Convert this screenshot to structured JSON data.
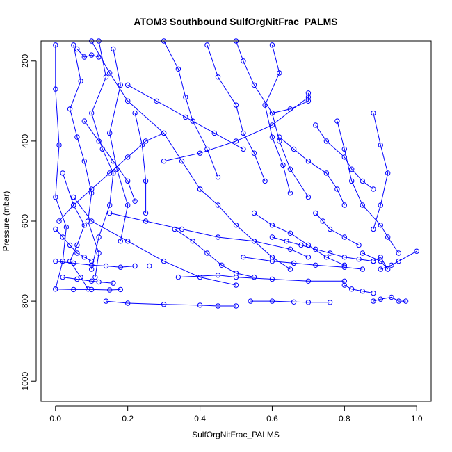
{
  "chart_data": {
    "type": "scatter",
    "title": "ATOM3 Southbound SulfOrgNitFrac_PALMS",
    "xlabel": "SulfOrgNitFrac_PALMS",
    "ylabel": "Pressure (mbar)",
    "xlim": [
      -0.04,
      1.04
    ],
    "ylim": [
      1050,
      150
    ],
    "y_reversed": true,
    "grid": false,
    "x_ticks": [
      0.0,
      0.2,
      0.4,
      0.6,
      0.8,
      1.0
    ],
    "x_tick_labels": [
      "0.0",
      "0.2",
      "0.4",
      "0.6",
      "0.8",
      "1.0"
    ],
    "y_ticks": [
      200,
      400,
      600,
      800,
      1000
    ],
    "y_tick_labels": [
      "200",
      "400",
      "600",
      "800",
      "1000"
    ],
    "series_color": "#0000ff",
    "marker": "open-circle",
    "connect_points": true,
    "series": [
      {
        "x": [
          0.0,
          0.0,
          0.01,
          0.0,
          0.03,
          0.02,
          0.0
        ],
        "y": [
          160,
          270,
          410,
          540,
          615,
          700,
          770
        ]
      },
      {
        "x": [
          0.05,
          0.07,
          0.04,
          0.06,
          0.08,
          0.1,
          0.09,
          0.12,
          0.11
        ],
        "y": [
          160,
          250,
          320,
          390,
          450,
          530,
          600,
          680,
          740
        ]
      },
      {
        "x": [
          0.12,
          0.14,
          0.1,
          0.13,
          0.16,
          0.15,
          0.12,
          0.1
        ],
        "y": [
          150,
          240,
          330,
          420,
          480,
          560,
          640,
          720
        ]
      },
      {
        "x": [
          0.16,
          0.18,
          0.15,
          0.17,
          0.2,
          0.18
        ],
        "y": [
          170,
          260,
          380,
          470,
          560,
          650
        ]
      },
      {
        "x": [
          0.02,
          0.05,
          0.08,
          0.06,
          0.04,
          0.07,
          0.09
        ],
        "y": [
          480,
          560,
          610,
          660,
          700,
          740,
          770
        ]
      },
      {
        "x": [
          0.1,
          0.15,
          0.2,
          0.3,
          0.35,
          0.4
        ],
        "y": [
          150,
          230,
          300,
          380,
          450,
          520
        ]
      },
      {
        "x": [
          0.22,
          0.24,
          0.25,
          0.25
        ],
        "y": [
          330,
          410,
          500,
          580
        ]
      },
      {
        "x": [
          0.3,
          0.34,
          0.36,
          0.38,
          0.42,
          0.45
        ],
        "y": [
          150,
          220,
          290,
          350,
          420,
          490
        ]
      },
      {
        "x": [
          0.42,
          0.45,
          0.5,
          0.52,
          0.55,
          0.58
        ],
        "y": [
          160,
          240,
          310,
          380,
          430,
          500
        ]
      },
      {
        "x": [
          0.5,
          0.52,
          0.55,
          0.6,
          0.62,
          0.65,
          0.7
        ],
        "y": [
          150,
          200,
          260,
          330,
          400,
          470,
          540
        ]
      },
      {
        "x": [
          0.6,
          0.62,
          0.58,
          0.6,
          0.63,
          0.65
        ],
        "y": [
          160,
          230,
          310,
          390,
          460,
          530
        ]
      },
      {
        "x": [
          0.6,
          0.65,
          0.7,
          0.7
        ],
        "y": [
          330,
          320,
          300,
          280
        ]
      },
      {
        "x": [
          0.62,
          0.66,
          0.7,
          0.75,
          0.78,
          0.8
        ],
        "y": [
          390,
          420,
          450,
          480,
          520,
          560
        ]
      },
      {
        "x": [
          0.72,
          0.75,
          0.8,
          0.82,
          0.85,
          0.88
        ],
        "y": [
          360,
          400,
          440,
          470,
          500,
          520
        ]
      },
      {
        "x": [
          0.78,
          0.8,
          0.82,
          0.85,
          0.9,
          0.92,
          0.95
        ],
        "y": [
          350,
          420,
          500,
          560,
          610,
          640,
          680
        ]
      },
      {
        "x": [
          0.88,
          0.9,
          0.92,
          0.9,
          0.88
        ],
        "y": [
          330,
          410,
          480,
          560,
          620
        ]
      },
      {
        "x": [
          0.72,
          0.74,
          0.76,
          0.8,
          0.84
        ],
        "y": [
          580,
          600,
          620,
          640,
          660
        ]
      },
      {
        "x": [
          0.55,
          0.6,
          0.65,
          0.7,
          0.75,
          0.8
        ],
        "y": [
          580,
          610,
          630,
          660,
          690,
          710
        ]
      },
      {
        "x": [
          0.4,
          0.45,
          0.5,
          0.55,
          0.6,
          0.65
        ],
        "y": [
          520,
          560,
          610,
          650,
          690,
          720
        ]
      },
      {
        "x": [
          0.33,
          0.38,
          0.42,
          0.46,
          0.5,
          0.55
        ],
        "y": [
          620,
          650,
          680,
          710,
          730,
          740
        ]
      },
      {
        "x": [
          0.34,
          0.45,
          0.5,
          0.6,
          0.7,
          0.8
        ],
        "y": [
          740,
          735,
          740,
          745,
          750,
          750
        ]
      },
      {
        "x": [
          0.52,
          0.6,
          0.66,
          0.72,
          0.8,
          0.85
        ],
        "y": [
          690,
          700,
          705,
          710,
          715,
          720
        ]
      },
      {
        "x": [
          0.85,
          0.9,
          0.92,
          0.9,
          0.88
        ],
        "y": [
          680,
          700,
          720,
          690,
          700
        ]
      },
      {
        "x": [
          0.9,
          0.93,
          0.95,
          1.0
        ],
        "y": [
          720,
          710,
          700,
          675
        ]
      },
      {
        "x": [
          0.8,
          0.82,
          0.85,
          0.88
        ],
        "y": [
          760,
          770,
          775,
          780
        ]
      },
      {
        "x": [
          0.88,
          0.9,
          0.93,
          0.95,
          0.97
        ],
        "y": [
          800,
          795,
          790,
          800,
          800
        ]
      },
      {
        "x": [
          0.54,
          0.6,
          0.66,
          0.7,
          0.76
        ],
        "y": [
          800,
          800,
          802,
          803,
          803
        ]
      },
      {
        "x": [
          0.14,
          0.2,
          0.3,
          0.4,
          0.45,
          0.5
        ],
        "y": [
          800,
          805,
          808,
          810,
          812,
          812
        ]
      },
      {
        "x": [
          0.0,
          0.05,
          0.1,
          0.15,
          0.18
        ],
        "y": [
          770,
          771,
          771,
          772,
          771
        ]
      },
      {
        "x": [
          0.0,
          0.05,
          0.1,
          0.14,
          0.18,
          0.22,
          0.26
        ],
        "y": [
          700,
          705,
          710,
          712,
          715,
          712,
          712
        ]
      },
      {
        "x": [
          0.02,
          0.06,
          0.1,
          0.12,
          0.16
        ],
        "y": [
          740,
          745,
          750,
          752,
          755
        ]
      },
      {
        "x": [
          0.01,
          0.05,
          0.1,
          0.15,
          0.2,
          0.25,
          0.3
        ],
        "y": [
          600,
          560,
          520,
          480,
          440,
          400,
          380
        ]
      },
      {
        "x": [
          0.05,
          0.1,
          0.2,
          0.3,
          0.4,
          0.5
        ],
        "y": [
          540,
          600,
          650,
          700,
          740,
          760
        ]
      },
      {
        "x": [
          0.3,
          0.4,
          0.5,
          0.6,
          0.7
        ],
        "y": [
          450,
          430,
          400,
          360,
          290
        ]
      },
      {
        "x": [
          0.06,
          0.08,
          0.1,
          0.12
        ],
        "y": [
          170,
          190,
          185,
          190
        ]
      },
      {
        "x": [
          0.15,
          0.25,
          0.35,
          0.45,
          0.55,
          0.65,
          0.7
        ],
        "y": [
          580,
          600,
          620,
          640,
          650,
          670,
          690
        ]
      },
      {
        "x": [
          0.2,
          0.28,
          0.36,
          0.44,
          0.52
        ],
        "y": [
          260,
          300,
          340,
          380,
          420
        ]
      },
      {
        "x": [
          0.08,
          0.12,
          0.16,
          0.2,
          0.22
        ],
        "y": [
          350,
          400,
          450,
          500,
          550
        ]
      },
      {
        "x": [
          0.0,
          0.02,
          0.04,
          0.06,
          0.08,
          0.1
        ],
        "y": [
          620,
          640,
          660,
          680,
          690,
          700
        ]
      },
      {
        "x": [
          0.6,
          0.64,
          0.68,
          0.72,
          0.76,
          0.8,
          0.84,
          0.88
        ],
        "y": [
          640,
          650,
          660,
          670,
          680,
          690,
          695,
          700
        ]
      }
    ]
  }
}
